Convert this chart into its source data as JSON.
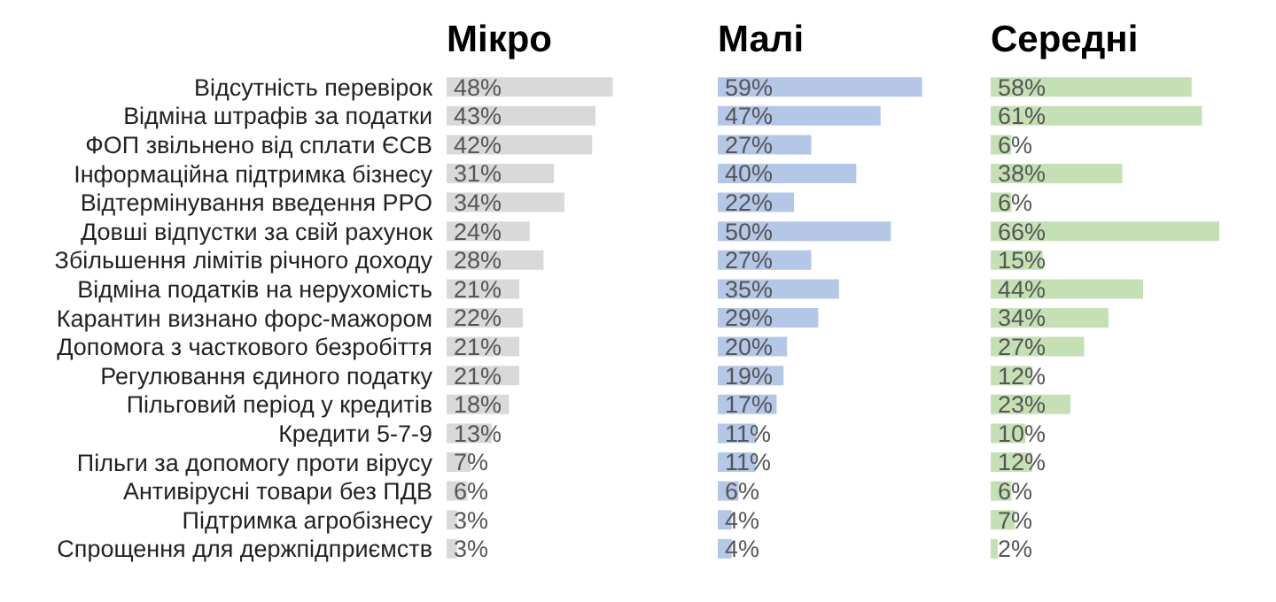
{
  "chart_data": [
    {
      "type": "bar",
      "orientation": "horizontal",
      "title": "Мікро",
      "categories": [
        "Відсутність перевірок",
        "Відміна штрафів за податки",
        "ФОП звільнено від сплати ЄСВ",
        "Інформаційна підтримка бізнесу",
        "Відтермінування введення РРО",
        "Довші відпустки за свій рахунок",
        "Збільшення лімітів річного доходу",
        "Відміна податків на нерухомість",
        "Карантин визнано форс-мажором",
        "Допомога з часткового безробіття",
        "Регулювання єдиного податку",
        "Пільговий період у кредитів",
        "Кредити 5-7-9",
        "Пільги за допомогу проти вірусу",
        "Антивірусні товари без ПДВ",
        "Підтримка агробізнесу",
        "Спрощення для держпідприємств"
      ],
      "color": "#d9d9d9",
      "values": [
        48,
        43,
        42,
        31,
        34,
        24,
        28,
        21,
        22,
        21,
        21,
        18,
        13,
        7,
        6,
        3,
        3
      ],
      "value_labels": [
        "48%",
        "43%",
        "42%",
        "31%",
        "34%",
        "24%",
        "28%",
        "21%",
        "22%",
        "21%",
        "21%",
        "18%",
        "13%",
        "7%",
        "6%",
        "3%",
        "3%"
      ]
    },
    {
      "type": "bar",
      "orientation": "horizontal",
      "title": "Малі",
      "categories": [
        null,
        null,
        null,
        null,
        null,
        null,
        null,
        null,
        null,
        null,
        null,
        null,
        null,
        null,
        null,
        null,
        null
      ],
      "color": "#b4c7e7",
      "values": [
        59,
        47,
        27,
        40,
        22,
        50,
        27,
        35,
        29,
        20,
        19,
        17,
        11,
        11,
        6,
        4,
        4
      ],
      "value_labels": [
        "59%",
        "47%",
        "27%",
        "40%",
        "22%",
        "50%",
        "27%",
        "35%",
        "29%",
        "20%",
        "19%",
        "17%",
        "11%",
        "11%",
        "6%",
        "4%",
        "4%"
      ]
    },
    {
      "type": "bar",
      "orientation": "horizontal",
      "title": "Середні",
      "categories": [
        null,
        null,
        null,
        null,
        null,
        null,
        null,
        null,
        null,
        null,
        null,
        null,
        null,
        null,
        null,
        null,
        null
      ],
      "color": "#c5e0b4",
      "values": [
        58,
        61,
        6,
        38,
        6,
        66,
        15,
        44,
        34,
        27,
        12,
        23,
        10,
        12,
        6,
        7,
        2
      ],
      "value_labels": [
        "58%",
        "61%",
        "6%",
        "38%",
        "6%",
        "66%",
        "15%",
        "44%",
        "34%",
        "27%",
        "12%",
        "23%",
        "10%",
        "12%",
        "6%",
        "7%",
        "2%"
      ]
    }
  ]
}
